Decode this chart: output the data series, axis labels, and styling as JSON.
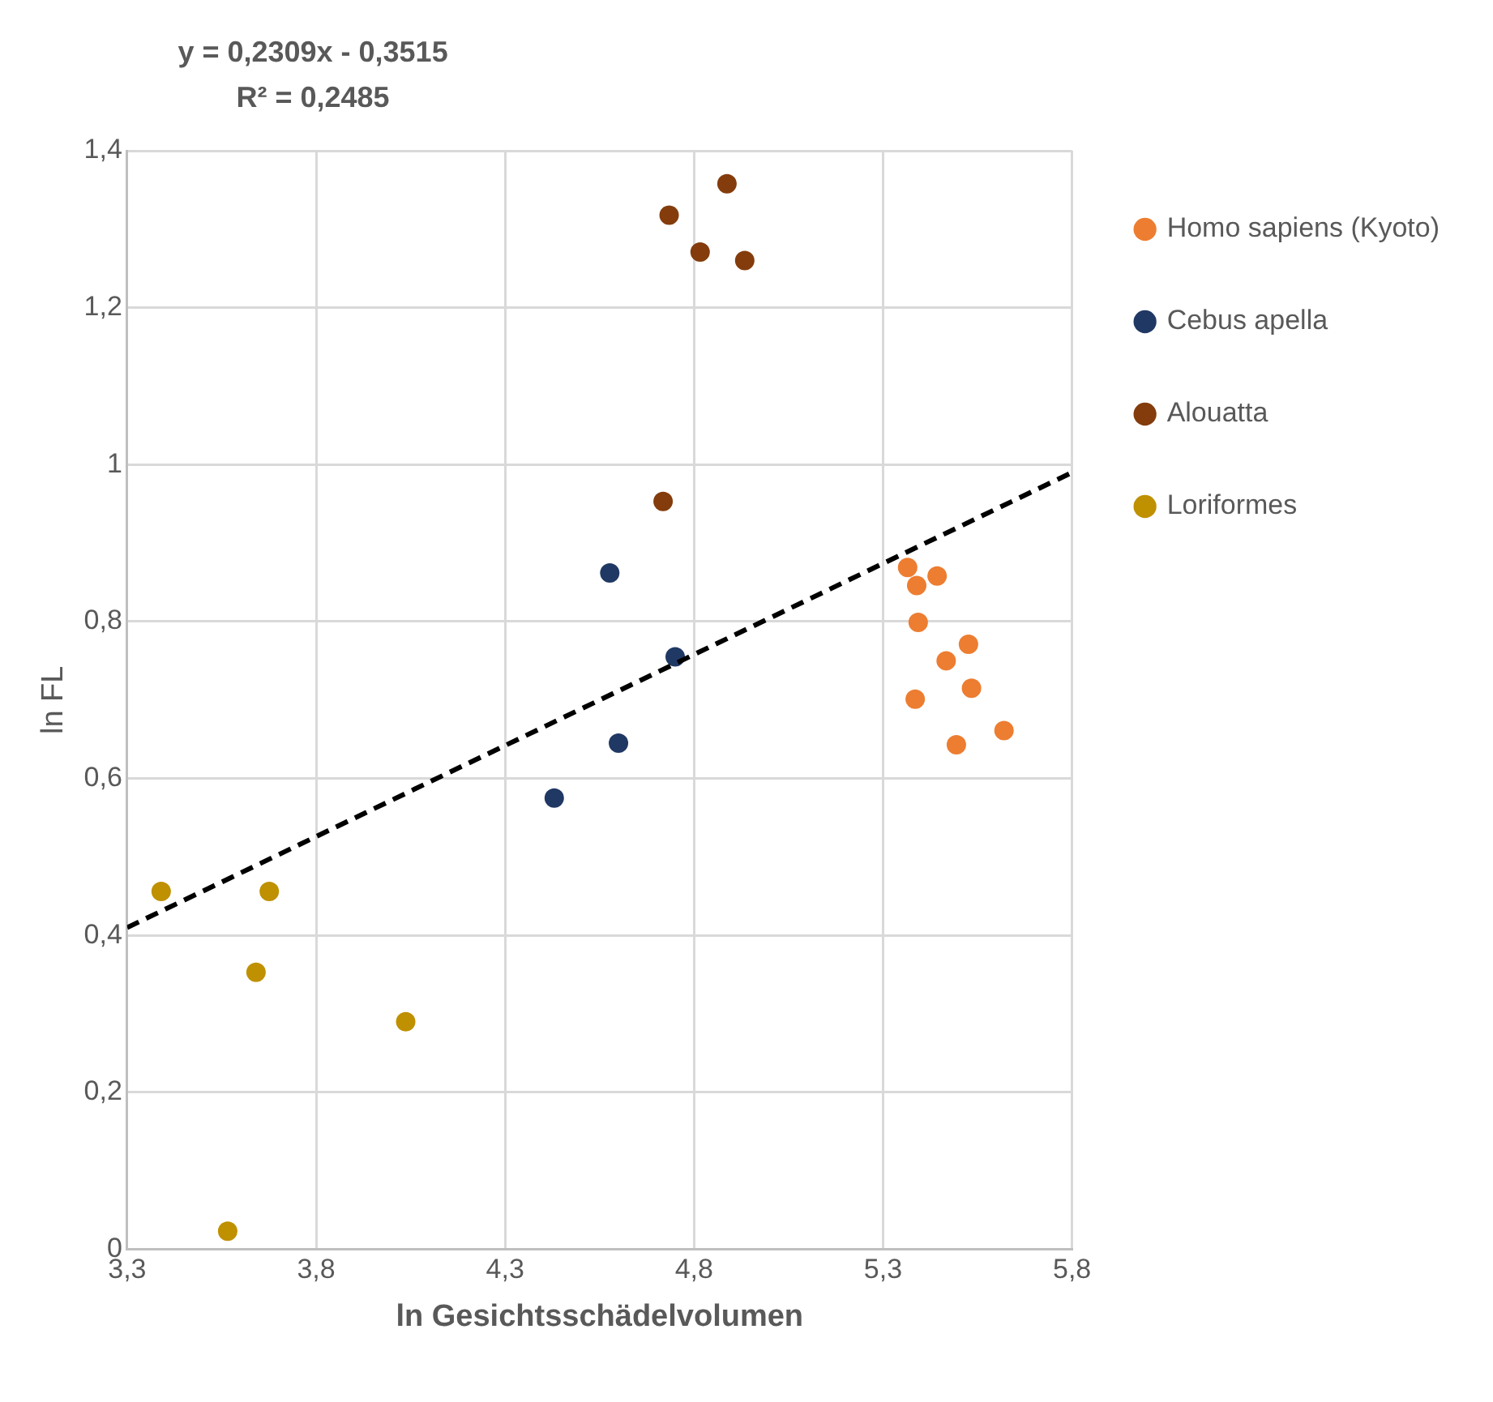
{
  "chart_data": {
    "type": "scatter",
    "xlabel": "ln Gesichtsschädelvolumen",
    "ylabel": "ln FL",
    "annotations": [
      "y = 0,2309x - 0,3515",
      "R² = 0,2485"
    ],
    "xlim": [
      3.3,
      5.8
    ],
    "xticks": [
      {
        "value": 3.3,
        "label": "3,3"
      },
      {
        "value": 3.8,
        "label": "3,8"
      },
      {
        "value": 4.3,
        "label": "4,3"
      },
      {
        "value": 4.8,
        "label": "4,8"
      },
      {
        "value": 5.3,
        "label": "5,3"
      },
      {
        "value": 5.8,
        "label": "5,8"
      }
    ],
    "ylim": [
      0,
      1.4
    ],
    "yticks": [
      0,
      {
        "value": 0.2,
        "label": "0,2"
      },
      {
        "value": 0.4,
        "label": "0,4"
      },
      {
        "value": 0.6,
        "label": "0,6"
      },
      {
        "value": 0.8,
        "label": "0,8"
      },
      1,
      {
        "value": 1.2,
        "label": "1,2"
      },
      {
        "value": 1.4,
        "label": "1,4"
      }
    ],
    "grid": true,
    "legend": "right",
    "marker": "circle",
    "series": [
      {
        "name": "Homo sapiens (Kyoto)",
        "color": "#ed7d31",
        "x": [
          5.365,
          5.389,
          5.443,
          5.393,
          5.467,
          5.526,
          5.385,
          5.534,
          5.494,
          5.62
        ],
        "values": [
          0.869,
          0.846,
          0.858,
          0.799,
          0.75,
          0.771,
          0.701,
          0.715,
          0.643,
          0.661
        ]
      },
      {
        "name": "Cebus apella",
        "color": "#203864",
        "x": [
          4.577,
          4.75,
          4.6,
          4.43
        ],
        "values": [
          0.862,
          0.755,
          0.645,
          0.575
        ]
      },
      {
        "name": "Alouatta",
        "color": "#843c0c",
        "x": [
          4.734,
          4.887,
          4.816,
          4.934,
          4.718
        ],
        "values": [
          1.318,
          1.358,
          1.271,
          1.26,
          0.953
        ]
      },
      {
        "name": "Loriformes",
        "color": "#bf9000",
        "x": [
          3.39,
          3.676,
          3.641,
          4.037,
          3.566
        ],
        "values": [
          0.456,
          0.456,
          0.353,
          0.29,
          0.023
        ]
      },
      {
        "type": "line",
        "color": "#000000",
        "line_style": "dashed",
        "marker": "none",
        "x": [
          3.3,
          5.8
        ],
        "values": [
          0.41,
          0.99
        ]
      }
    ]
  }
}
